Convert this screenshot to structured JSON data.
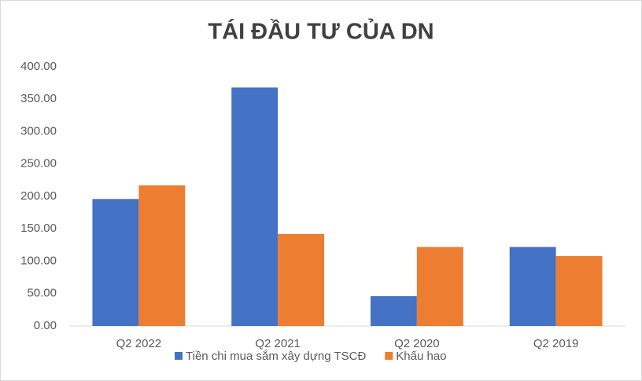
{
  "chart_data": {
    "type": "bar",
    "title": "TÁI ĐẦU TƯ CỦA DN",
    "categories": [
      "Q2 2022",
      "Q2 2021",
      "Q2 2020",
      "Q2 2019"
    ],
    "series": [
      {
        "name": "Tiền chi mua sắm xây dựng TSCĐ",
        "color": "#4472c4",
        "values": [
          196,
          368,
          46,
          122
        ]
      },
      {
        "name": "Khấu hao",
        "color": "#ed7d31",
        "values": [
          217,
          142,
          122,
          108
        ]
      }
    ],
    "ylim": [
      0,
      400
    ],
    "yticks": [
      {
        "value": 0,
        "label": "0.00"
      },
      {
        "value": 50,
        "label": "50.00"
      },
      {
        "value": 100,
        "label": "100.00"
      },
      {
        "value": 150,
        "label": "150.00"
      },
      {
        "value": 200,
        "label": "200.00"
      },
      {
        "value": 250,
        "label": "250.00"
      },
      {
        "value": 300,
        "label": "300.00"
      },
      {
        "value": 350,
        "label": "350.00"
      },
      {
        "value": 400,
        "label": "400.00"
      }
    ],
    "grid": false,
    "legend": "bottom"
  }
}
